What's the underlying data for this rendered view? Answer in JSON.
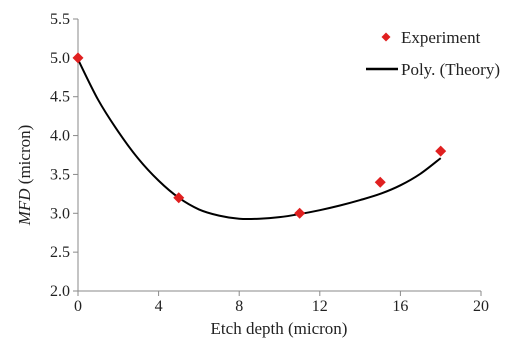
{
  "chart_data": {
    "type": "scatter",
    "xlabel": "Etch depth (micron)",
    "ylabel_italic": "MFD",
    "ylabel_rest": " (micron)",
    "xlim": [
      0,
      20
    ],
    "ylim": [
      2.0,
      5.5
    ],
    "x_ticks": [
      0,
      4,
      8,
      12,
      16,
      20
    ],
    "x_tick_labels": [
      "0",
      "4",
      "8",
      "12",
      "16",
      "20"
    ],
    "y_ticks": [
      2.0,
      2.5,
      3.0,
      3.5,
      4.0,
      4.5,
      5.0,
      5.5
    ],
    "y_tick_labels": [
      "2.0",
      "2.5",
      "3.0",
      "3.5",
      "4.0",
      "4.5",
      "5.0",
      "5.5"
    ],
    "grid": false,
    "legend_position": "top-right",
    "series": [
      {
        "name": "Experiment",
        "kind": "marker",
        "marker": "diamond",
        "color": "#e02020",
        "x": [
          0,
          5,
          11,
          15,
          18
        ],
        "y": [
          5.0,
          3.2,
          3.0,
          3.4,
          3.8
        ]
      },
      {
        "name": "Poly. (Theory)",
        "kind": "line",
        "color": "#000000",
        "x": [
          0,
          1,
          2,
          3,
          4,
          5,
          6,
          7,
          8,
          9,
          10,
          11,
          12,
          13,
          14,
          15,
          16,
          17,
          18
        ],
        "y": [
          4.98,
          4.46,
          4.05,
          3.7,
          3.42,
          3.2,
          3.05,
          2.97,
          2.93,
          2.93,
          2.95,
          2.99,
          3.04,
          3.1,
          3.17,
          3.25,
          3.36,
          3.51,
          3.71
        ]
      }
    ]
  }
}
